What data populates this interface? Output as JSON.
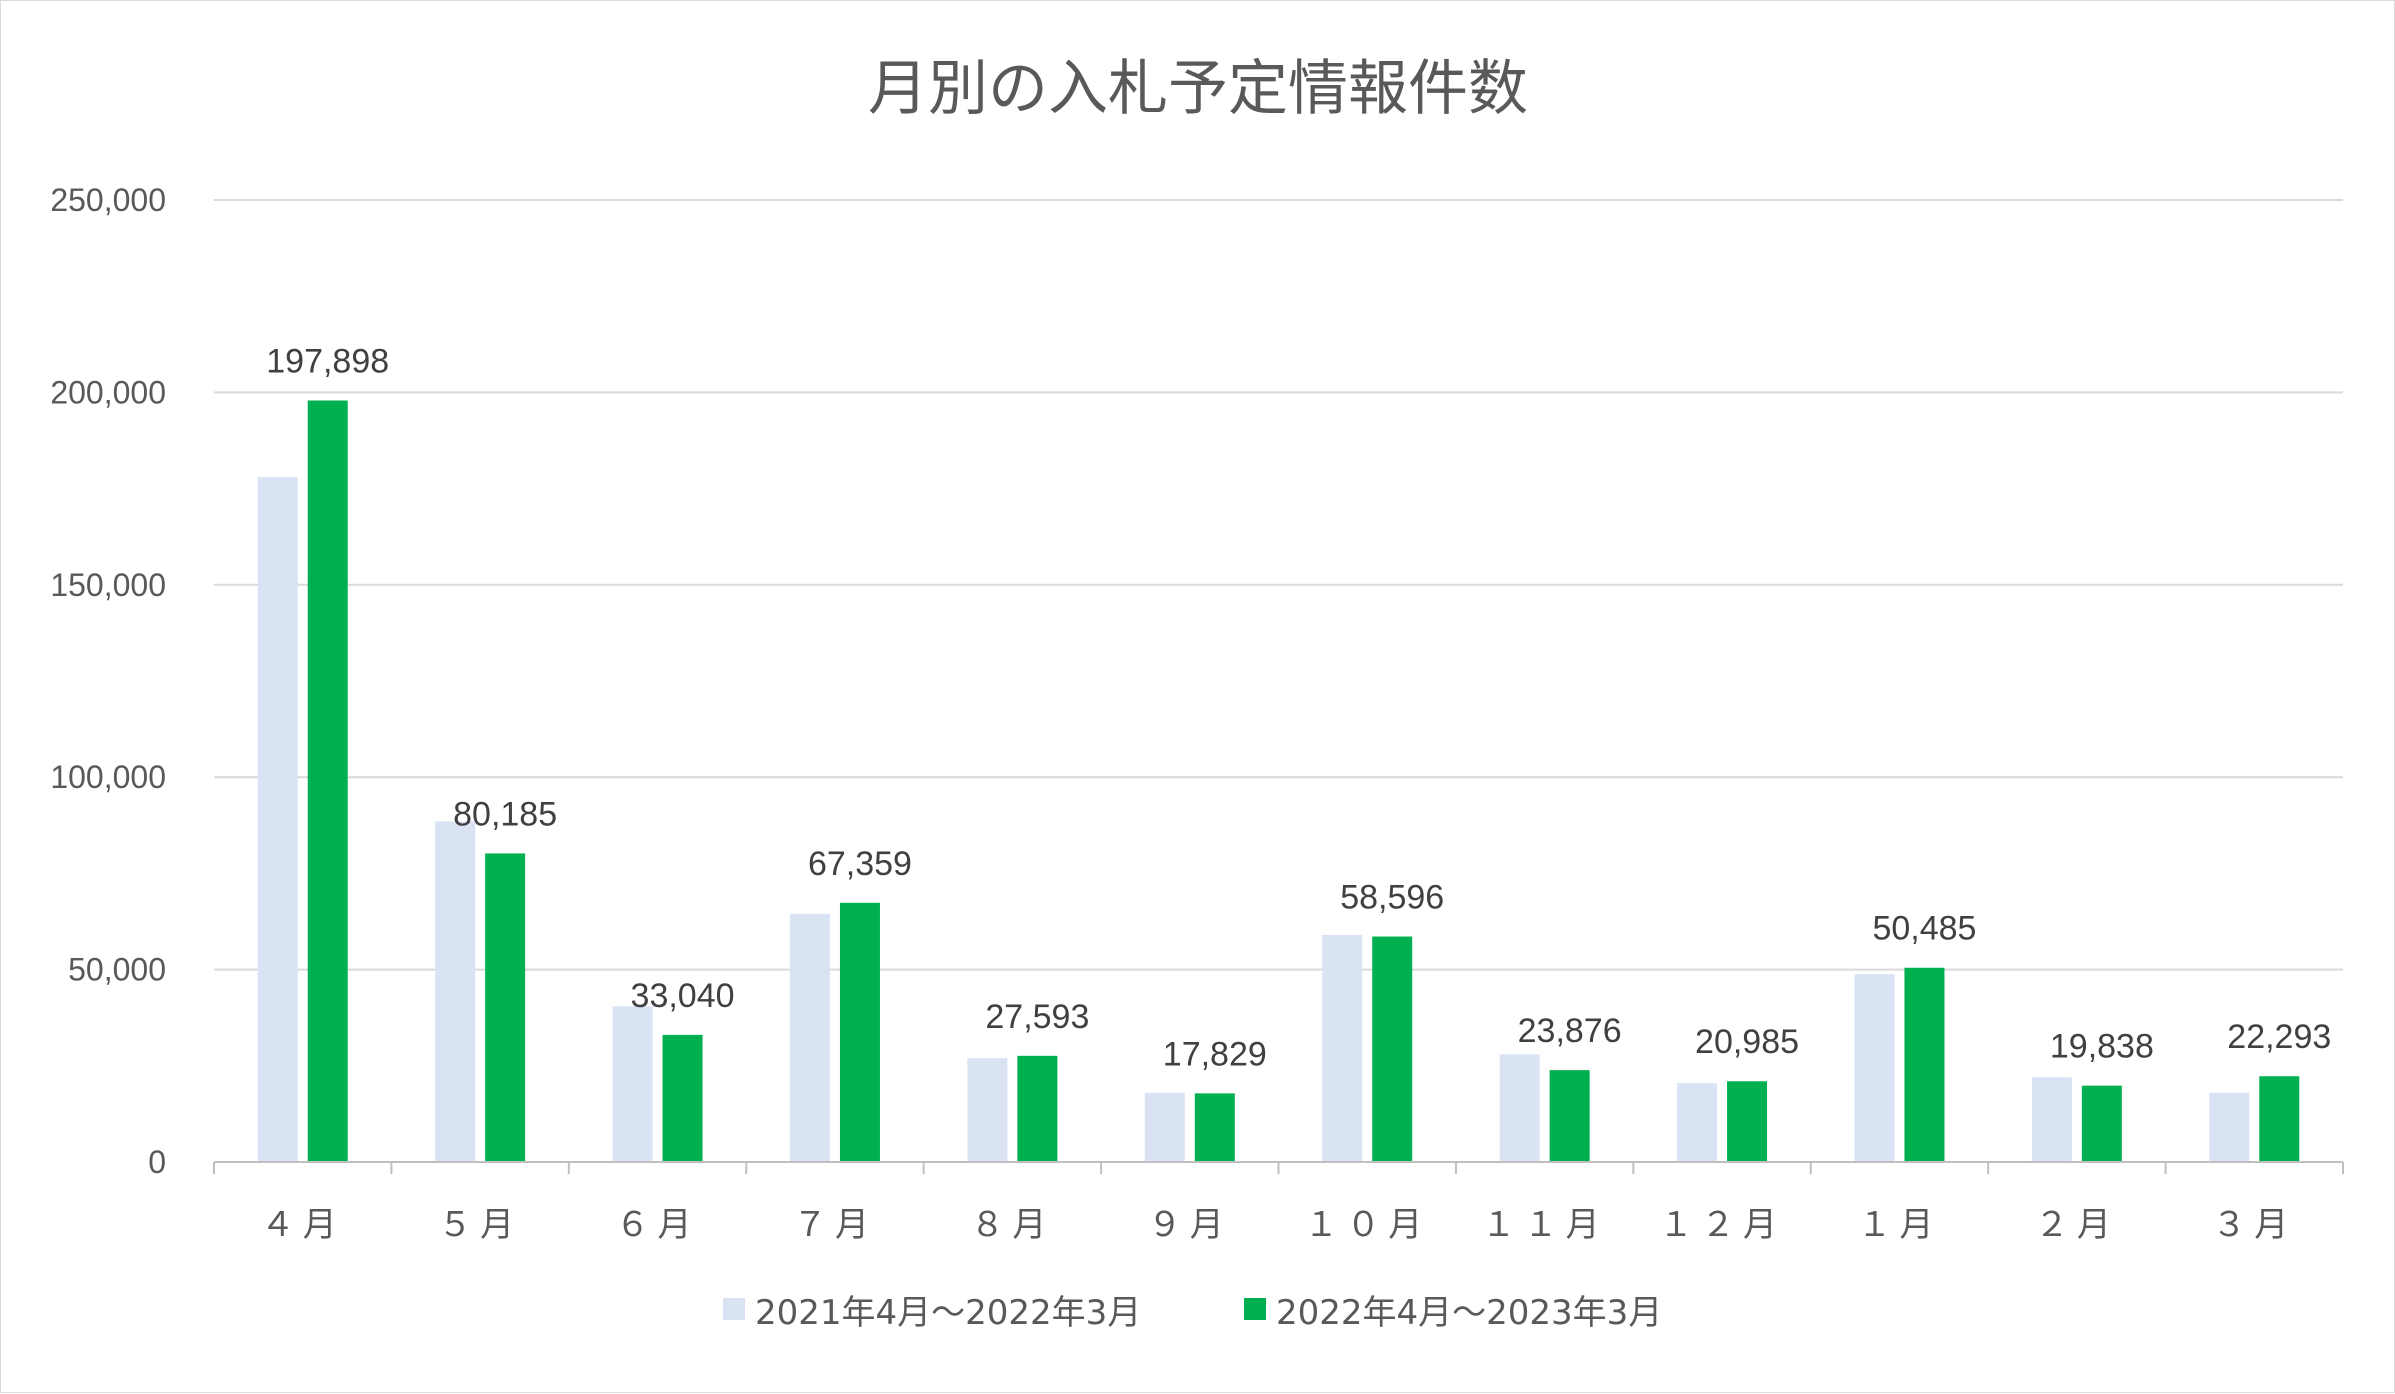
{
  "chart_data": {
    "type": "bar",
    "title": "月別の入札予定情報件数",
    "xlabel": "",
    "ylabel": "",
    "ylim": [
      0,
      250000
    ],
    "yticks": [
      0,
      50000,
      100000,
      150000,
      200000,
      250000
    ],
    "ytick_labels": [
      "0",
      "50,000",
      "100,000",
      "150,000",
      "200,000",
      "250,000"
    ],
    "grid": true,
    "legend_position": "bottom",
    "categories": [
      "４月",
      "５月",
      "６月",
      "７月",
      "８月",
      "９月",
      "１０月",
      "１１月",
      "１２月",
      "１月",
      "２月",
      "３月"
    ],
    "series": [
      {
        "name": "2021年4月～2022年3月",
        "color": "#dae3f3",
        "values": [
          178000,
          88500,
          40500,
          64500,
          27000,
          18000,
          59000,
          28000,
          20500,
          48800,
          22000,
          18000
        ],
        "data_labels": []
      },
      {
        "name": "2022年4月～2023年3月",
        "color": "#00b050",
        "values": [
          197898,
          80185,
          33040,
          67359,
          27593,
          17829,
          58596,
          23876,
          20985,
          50485,
          19838,
          22293
        ],
        "data_labels": [
          "197,898",
          "80,185",
          "33,040",
          "67,359",
          "27,593",
          "17,829",
          "58,596",
          "23,876",
          "20,985",
          "50,485",
          "19,838",
          "22,293"
        ]
      }
    ]
  }
}
